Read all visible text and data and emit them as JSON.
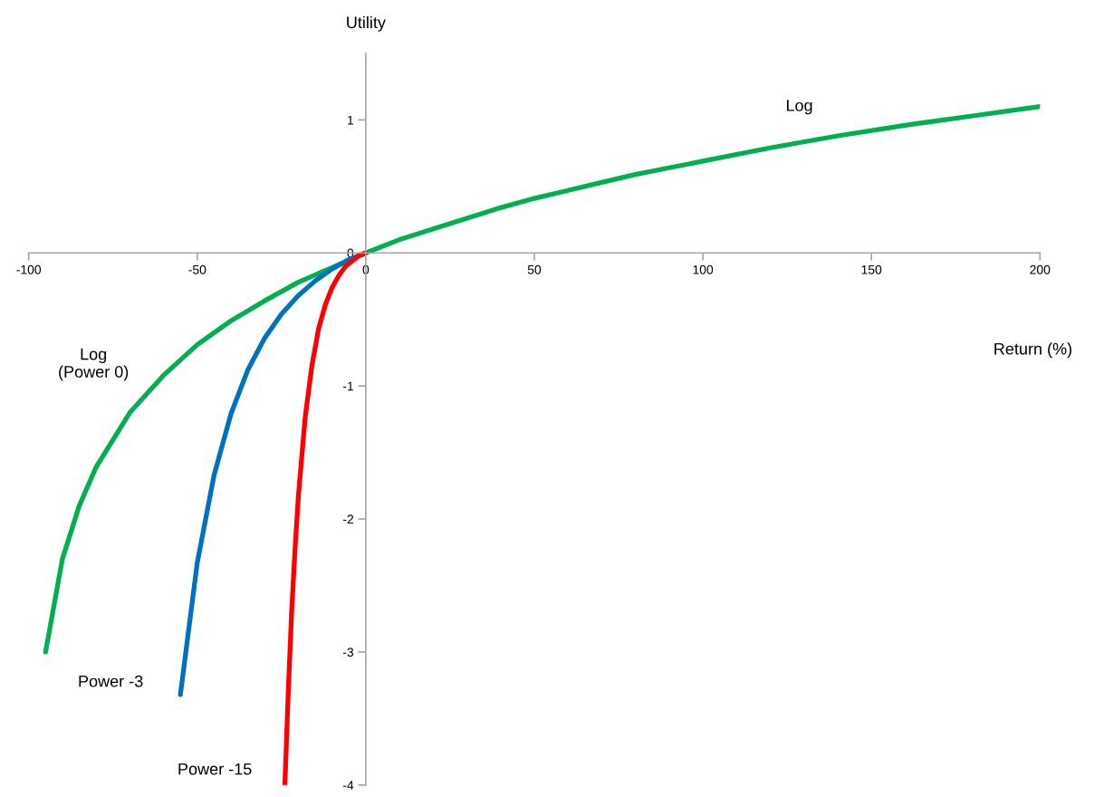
{
  "chart_data": {
    "type": "line",
    "xlabel": "Return (%)",
    "ylabel": "Utility",
    "xlim": [
      -100,
      200
    ],
    "xticks": [
      -100,
      -50,
      0,
      50,
      100,
      150,
      200
    ],
    "ylim": [
      -4,
      1.5
    ],
    "yticks": [
      -4,
      -3,
      -2,
      -1,
      0,
      1
    ],
    "grid": false,
    "legend": false,
    "marker": "none",
    "line_style": "solid",
    "series": [
      {
        "color": "#00b050",
        "x": [
          -95,
          -90,
          -85,
          -80,
          -70,
          -60,
          -50,
          -40,
          -30,
          -20,
          -10,
          0,
          10,
          20,
          30,
          40,
          50,
          60,
          70,
          80,
          90,
          100,
          120,
          140,
          160,
          180,
          200
        ],
        "values": [
          -3.0,
          -2.3,
          -1.9,
          -1.61,
          -1.2,
          -0.92,
          -0.69,
          -0.51,
          -0.36,
          -0.22,
          -0.11,
          0,
          0.1,
          0.18,
          0.26,
          0.34,
          0.41,
          0.47,
          0.53,
          0.59,
          0.64,
          0.69,
          0.79,
          0.88,
          0.96,
          1.03,
          1.1
        ]
      },
      {
        "color": "#0070c0",
        "x": [
          -55,
          -50,
          -45,
          -40,
          -35,
          -30,
          -25,
          -20,
          -15,
          -10,
          -5,
          0
        ],
        "values": [
          -3.32,
          -2.33,
          -1.67,
          -1.21,
          -0.88,
          -0.64,
          -0.46,
          -0.32,
          -0.21,
          -0.12,
          -0.05,
          0
        ]
      },
      {
        "color": "#ff0000",
        "x": [
          -24,
          -23,
          -22,
          -21,
          -20,
          -18,
          -16,
          -14,
          -12,
          -10,
          -8,
          -6,
          -4,
          -2,
          0
        ],
        "values": [
          -4.0,
          -3.3,
          -2.7,
          -2.23,
          -1.83,
          -1.24,
          -0.85,
          -0.57,
          -0.39,
          -0.26,
          -0.17,
          -0.1,
          -0.06,
          -0.02,
          0
        ]
      }
    ],
    "annotations": [
      "Log",
      "Log\n(Power 0)",
      "Power -3",
      "Power -15"
    ]
  }
}
